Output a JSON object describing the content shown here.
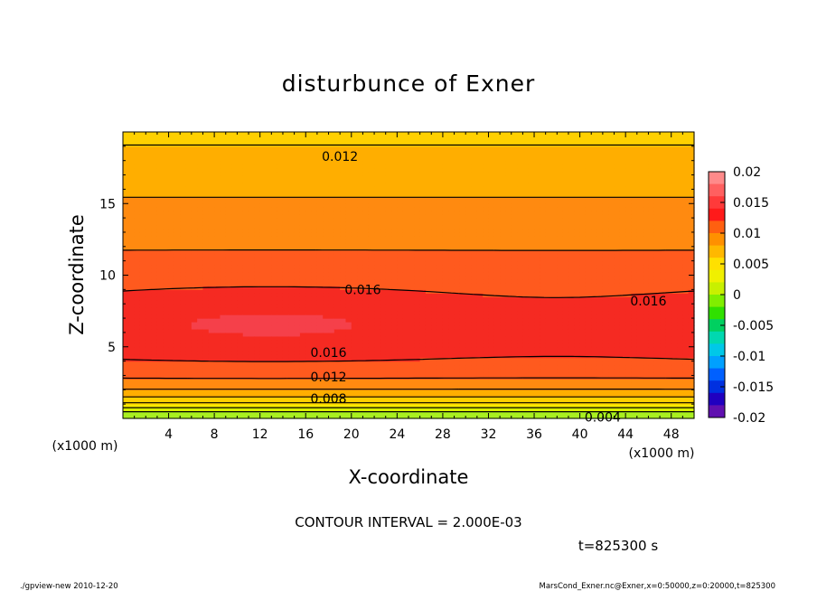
{
  "chart_data": {
    "type": "heatmap",
    "title": "disturbunce of Exner",
    "xlabel": "X-coordinate",
    "ylabel": "Z-coordinate",
    "x_unit_label": "(x1000 m)",
    "x_ticks": [
      4,
      8,
      12,
      16,
      20,
      24,
      28,
      32,
      36,
      40,
      44,
      48
    ],
    "y_ticks": [
      5,
      10,
      15
    ],
    "xlim": [
      0,
      50
    ],
    "ylim": [
      0,
      20
    ],
    "colorbar": {
      "ticks": [
        "0.02",
        "0.015",
        "0.01",
        "0.005",
        "0",
        "-0.005",
        "-0.01",
        "-0.015",
        "-0.02"
      ],
      "range": [
        -0.02,
        0.02
      ]
    },
    "contour_interval_text": "CONTOUR INTERVAL = 2.000E-03",
    "time_text": "t=825300 s",
    "contour_labels": [
      {
        "text": "0.012",
        "x": 19,
        "z": 18.3
      },
      {
        "text": "0.016",
        "x": 21,
        "z": 9.0
      },
      {
        "text": "0.016",
        "x": 46,
        "z": 8.2
      },
      {
        "text": "0.016",
        "x": 18,
        "z": 4.6
      },
      {
        "text": "0.012",
        "x": 18,
        "z": 2.9
      },
      {
        "text": "0.008",
        "x": 18,
        "z": 1.4
      },
      {
        "text": "0.004",
        "x": 42,
        "z": 0.1
      }
    ],
    "bands": [
      {
        "low": 0.002,
        "high": 0.004,
        "color": "#a9f020"
      },
      {
        "low": 0.004,
        "high": 0.006,
        "color": "#d8f000"
      },
      {
        "low": 0.006,
        "high": 0.008,
        "color": "#f8ec00"
      },
      {
        "low": 0.008,
        "high": 0.01,
        "color": "#ffd000"
      },
      {
        "low": 0.01,
        "high": 0.012,
        "color": "#ffae00"
      },
      {
        "low": 0.012,
        "high": 0.014,
        "color": "#ff8a10"
      },
      {
        "low": 0.014,
        "high": 0.016,
        "color": "#ff5a1e"
      },
      {
        "low": 0.016,
        "high": 0.018,
        "color": "#f52a22"
      },
      {
        "low": 0.018,
        "high": 0.02,
        "color": "#f5404a"
      },
      {
        "low": 0.02,
        "high": 0.022,
        "color": "#ff6a6a"
      }
    ],
    "colorbar_colors": [
      "#ff8a8a",
      "#ff6060",
      "#ff3a3a",
      "#ff1a1a",
      "#ff6010",
      "#ff9000",
      "#ffb800",
      "#ffe000",
      "#f0f000",
      "#c8f000",
      "#80ee00",
      "#30e000",
      "#00d060",
      "#00d8b0",
      "#00c8e8",
      "#00a0ff",
      "#0060ff",
      "#0030e0",
      "#2000c0",
      "#6010b0"
    ]
  },
  "footer": {
    "left": "./gpview-new   2010-12-20",
    "right": "MarsCond_Exner.nc@Exner,x=0:50000,z=0:20000,t=825300"
  }
}
